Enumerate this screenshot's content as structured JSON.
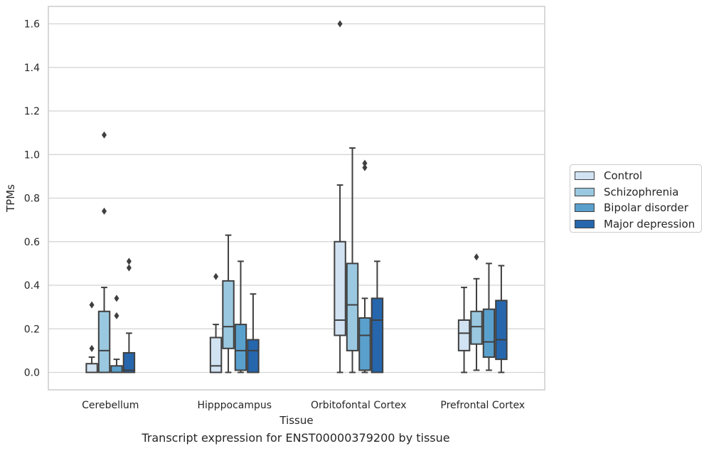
{
  "chart_data": {
    "type": "box",
    "xlabel": "Tissue",
    "ylabel": "TPMs",
    "caption": "Transcript expression for ENST00000379200 by tissue",
    "ylim": [
      -0.08,
      1.68
    ],
    "yticks": [
      "0.0",
      "0.2",
      "0.4",
      "0.6",
      "0.8",
      "1.0",
      "1.2",
      "1.4",
      "1.6"
    ],
    "ytick_values": [
      0.0,
      0.2,
      0.4,
      0.6,
      0.8,
      1.0,
      1.2,
      1.4,
      1.6
    ],
    "grid": "horizontal",
    "legend_position": "right",
    "categories": [
      "Cerebellum",
      "Hipppocampus",
      "Orbitofontal Cortex",
      "Prefrontal Cortex"
    ],
    "series": [
      {
        "name": "Control",
        "color": "#d1e2f2",
        "boxes": [
          {
            "whislo": 0.0,
            "q1": 0.0,
            "med": 0.0,
            "q3": 0.04,
            "whishi": 0.07,
            "fliers": [
              0.11,
              0.31
            ]
          },
          {
            "whislo": 0.0,
            "q1": 0.0,
            "med": 0.03,
            "q3": 0.16,
            "whishi": 0.22,
            "fliers": [
              0.44
            ]
          },
          {
            "whislo": 0.0,
            "q1": 0.17,
            "med": 0.24,
            "q3": 0.6,
            "whishi": 0.86,
            "fliers": [
              1.6
            ]
          },
          {
            "whislo": 0.0,
            "q1": 0.1,
            "med": 0.18,
            "q3": 0.24,
            "whishi": 0.39,
            "fliers": []
          }
        ]
      },
      {
        "name": "Schizophrenia",
        "color": "#9ac8e0",
        "boxes": [
          {
            "whislo": 0.0,
            "q1": 0.0,
            "med": 0.1,
            "q3": 0.28,
            "whishi": 0.39,
            "fliers": [
              0.74,
              1.09
            ]
          },
          {
            "whislo": 0.0,
            "q1": 0.11,
            "med": 0.21,
            "q3": 0.42,
            "whishi": 0.63,
            "fliers": []
          },
          {
            "whislo": 0.0,
            "q1": 0.1,
            "med": 0.31,
            "q3": 0.5,
            "whishi": 1.03,
            "fliers": []
          },
          {
            "whislo": 0.01,
            "q1": 0.13,
            "med": 0.21,
            "q3": 0.28,
            "whishi": 0.43,
            "fliers": [
              0.53
            ]
          }
        ]
      },
      {
        "name": "Bipolar disorder",
        "color": "#5aa0cd",
        "boxes": [
          {
            "whislo": 0.0,
            "q1": 0.0,
            "med": 0.0,
            "q3": 0.03,
            "whishi": 0.06,
            "fliers": [
              0.26,
              0.34
            ]
          },
          {
            "whislo": 0.0,
            "q1": 0.01,
            "med": 0.1,
            "q3": 0.22,
            "whishi": 0.51,
            "fliers": []
          },
          {
            "whislo": 0.0,
            "q1": 0.01,
            "med": 0.17,
            "q3": 0.25,
            "whishi": 0.34,
            "fliers": [
              0.94,
              0.96
            ]
          },
          {
            "whislo": 0.01,
            "q1": 0.07,
            "med": 0.14,
            "q3": 0.29,
            "whishi": 0.5,
            "fliers": []
          }
        ]
      },
      {
        "name": "Major depression",
        "color": "#2666ad",
        "boxes": [
          {
            "whislo": 0.0,
            "q1": 0.0,
            "med": 0.01,
            "q3": 0.09,
            "whishi": 0.18,
            "fliers": [
              0.48,
              0.51
            ]
          },
          {
            "whislo": 0.0,
            "q1": 0.0,
            "med": 0.1,
            "q3": 0.15,
            "whishi": 0.36,
            "fliers": []
          },
          {
            "whislo": 0.0,
            "q1": 0.0,
            "med": 0.24,
            "q3": 0.34,
            "whishi": 0.51,
            "fliers": []
          },
          {
            "whislo": 0.0,
            "q1": 0.06,
            "med": 0.15,
            "q3": 0.33,
            "whishi": 0.49,
            "fliers": []
          }
        ]
      }
    ]
  }
}
